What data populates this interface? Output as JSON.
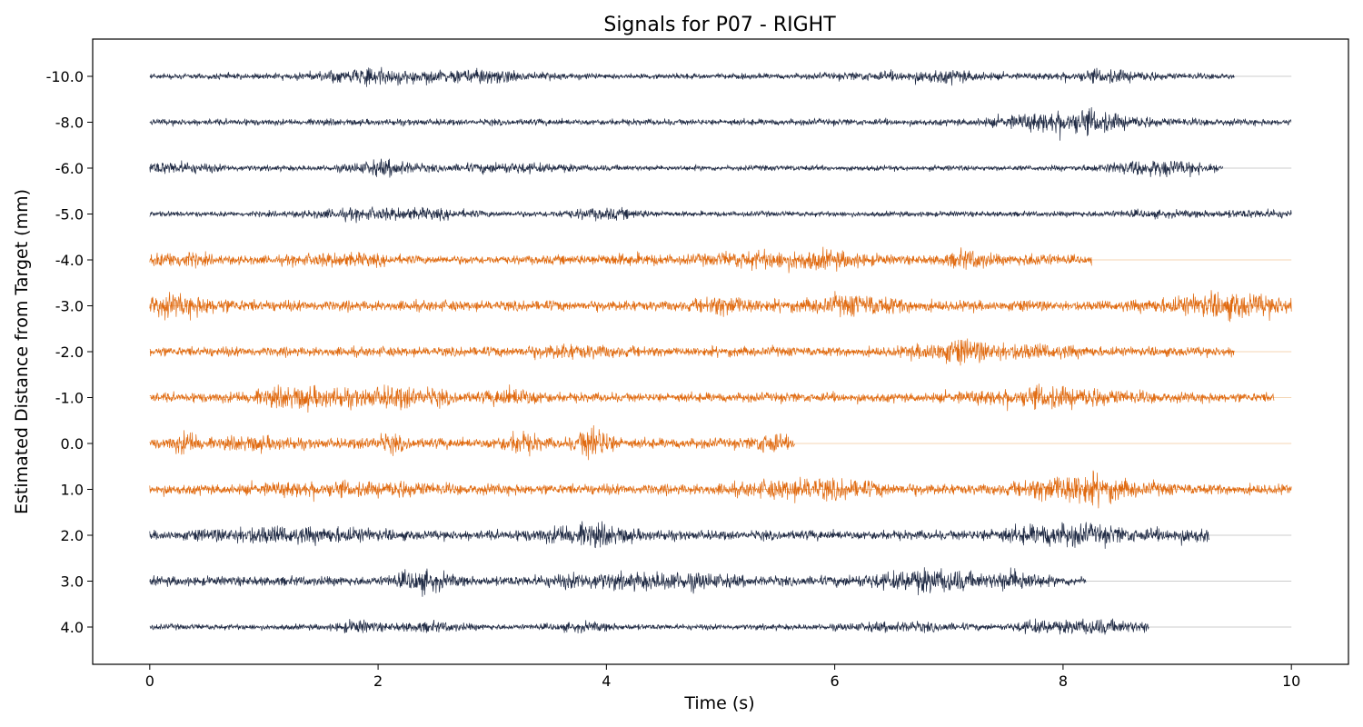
{
  "chart_data": {
    "type": "line",
    "title": "Signals for P07 - RIGHT",
    "xlabel": "Time (s)",
    "ylabel": "Estimated Distance from Target (mm)",
    "xlim": [
      -0.5,
      10.5
    ],
    "x_ticks": [
      0,
      2,
      4,
      6,
      8,
      10
    ],
    "x_tick_labels": [
      "0",
      "2",
      "4",
      "6",
      "8",
      "10"
    ],
    "grid": false,
    "legend": "none",
    "colors": {
      "in_target": "#E06A10",
      "out_of_target": "#1F2A44",
      "baseline": "#BBBBBB"
    },
    "series": [
      {
        "label": "-10.0",
        "highlighted": false,
        "t_start": 0,
        "t_end": 9.5,
        "amplitude": 0.18
      },
      {
        "label": "-8.0",
        "highlighted": false,
        "t_start": 0,
        "t_end": 10.0,
        "amplitude": 0.2
      },
      {
        "label": "-6.0",
        "highlighted": false,
        "t_start": 0,
        "t_end": 9.4,
        "amplitude": 0.17
      },
      {
        "label": "-5.0",
        "highlighted": false,
        "t_start": 0,
        "t_end": 10.0,
        "amplitude": 0.17
      },
      {
        "label": "-4.0",
        "highlighted": true,
        "t_start": 0,
        "t_end": 8.25,
        "amplitude": 0.28
      },
      {
        "label": "-3.0",
        "highlighted": true,
        "t_start": 0,
        "t_end": 10.0,
        "amplitude": 0.33
      },
      {
        "label": "-2.0",
        "highlighted": true,
        "t_start": 0,
        "t_end": 9.5,
        "amplitude": 0.3
      },
      {
        "label": "-1.0",
        "highlighted": true,
        "t_start": 0,
        "t_end": 9.85,
        "amplitude": 0.3
      },
      {
        "label": "0.0",
        "highlighted": true,
        "t_start": 0,
        "t_end": 5.65,
        "amplitude": 0.32
      },
      {
        "label": "1.0",
        "highlighted": true,
        "t_start": 0,
        "t_end": 10.0,
        "amplitude": 0.33
      },
      {
        "label": "2.0",
        "highlighted": false,
        "t_start": 0,
        "t_end": 9.28,
        "amplitude": 0.3
      },
      {
        "label": "3.0",
        "highlighted": false,
        "t_start": 0,
        "t_end": 8.2,
        "amplitude": 0.3
      },
      {
        "label": "4.0",
        "highlighted": false,
        "t_start": 0,
        "t_end": 8.75,
        "amplitude": 0.18
      }
    ]
  }
}
